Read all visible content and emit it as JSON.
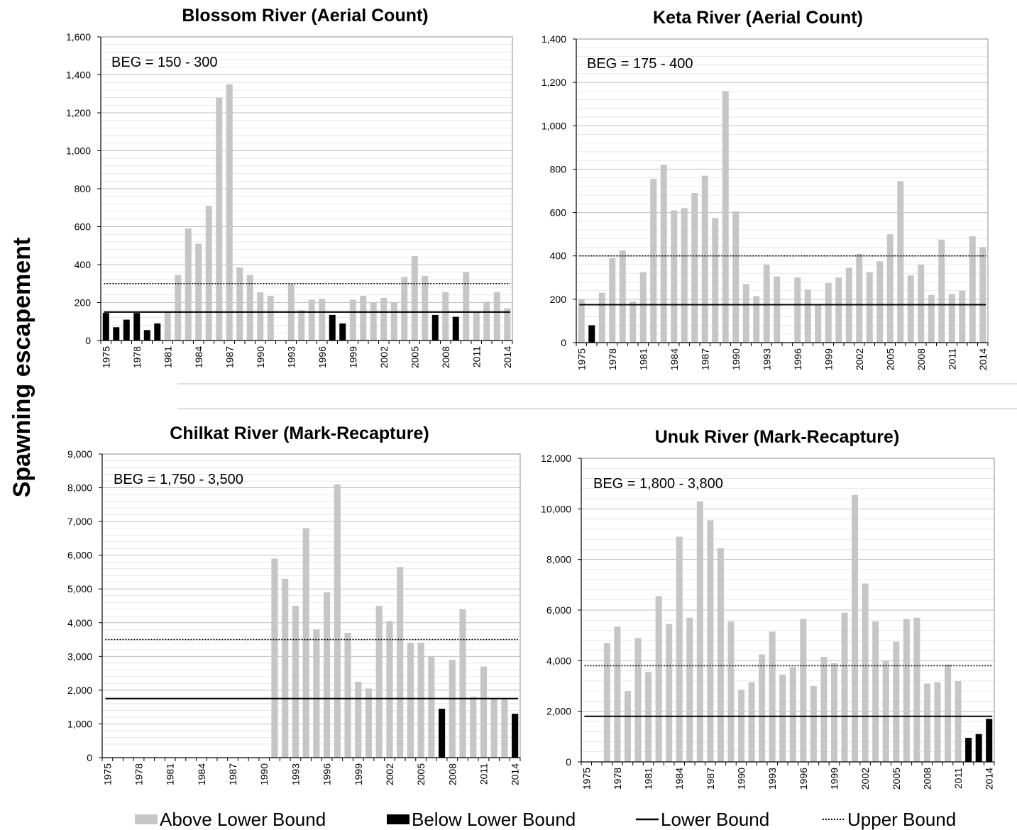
{
  "y_axis_label": "Spawning escapement",
  "legend": {
    "above": "Above Lower Bound",
    "below": "Below Lower Bound",
    "lower": "Lower Bound",
    "upper": "Upper Bound"
  },
  "colors": {
    "above": "#c6c6c6",
    "below": "#000000",
    "grid": "#bfbfbf"
  },
  "chart_data": [
    {
      "type": "bar",
      "title": "Blossom River (Aerial Count)",
      "annotation": "BEG = 150 - 300",
      "start_year": 1975,
      "x_tick_labels": [
        "1975",
        "1978",
        "1981",
        "1984",
        "1987",
        "1990",
        "1993",
        "1996",
        "1999",
        "2002",
        "2005",
        "2008",
        "2011",
        "2014"
      ],
      "y_tick_labels": [
        "0",
        "200",
        "400",
        "600",
        "800",
        "1,000",
        "1,200",
        "1,400",
        "1,600"
      ],
      "ylim": [
        0,
        1600
      ],
      "lower_bound": 150,
      "upper_bound": 300,
      "values": [
        145,
        70,
        110,
        145,
        55,
        90,
        150,
        345,
        590,
        510,
        710,
        1280,
        1350,
        385,
        345,
        255,
        235,
        0,
        300,
        160,
        215,
        220,
        135,
        90,
        215,
        235,
        200,
        225,
        200,
        335,
        445,
        340,
        135,
        255,
        125,
        360,
        150,
        205,
        255,
        170
      ]
    },
    {
      "type": "bar",
      "title": "Keta River (Aerial Count)",
      "annotation": "BEG = 175 - 400",
      "start_year": 1975,
      "x_tick_labels": [
        "1975",
        "1978",
        "1981",
        "1984",
        "1987",
        "1990",
        "1993",
        "1996",
        "1999",
        "2002",
        "2005",
        "2008",
        "2011",
        "2014"
      ],
      "y_tick_labels": [
        "0",
        "200",
        "400",
        "600",
        "800",
        "1,000",
        "1,200",
        "1,400"
      ],
      "ylim": [
        0,
        1400
      ],
      "lower_bound": 175,
      "upper_bound": 400,
      "values": [
        200,
        80,
        230,
        390,
        425,
        190,
        325,
        755,
        820,
        610,
        620,
        690,
        770,
        575,
        1160,
        605,
        270,
        215,
        360,
        305,
        0,
        300,
        245,
        175,
        275,
        300,
        345,
        410,
        325,
        375,
        500,
        745,
        310,
        360,
        220,
        475,
        225,
        240,
        490,
        440
      ]
    },
    {
      "type": "bar",
      "title": "Chilkat River (Mark-Recapture)",
      "annotation": "BEG = 1,750 - 3,500",
      "start_year": 1975,
      "x_tick_labels": [
        "1975",
        "1978",
        "1981",
        "1984",
        "1987",
        "1990",
        "1993",
        "1996",
        "1999",
        "2002",
        "2005",
        "2008",
        "2011",
        "2014"
      ],
      "y_tick_labels": [
        "0",
        "1,000",
        "2,000",
        "3,000",
        "4,000",
        "5,000",
        "6,000",
        "7,000",
        "8,000",
        "9,000"
      ],
      "ylim": [
        0,
        9000
      ],
      "lower_bound": 1750,
      "upper_bound": 3500,
      "values": [
        0,
        0,
        0,
        0,
        0,
        0,
        0,
        0,
        0,
        0,
        0,
        0,
        0,
        0,
        0,
        0,
        5900,
        5300,
        4500,
        6800,
        3800,
        4900,
        8100,
        3700,
        2250,
        2050,
        4500,
        4050,
        5650,
        3400,
        3400,
        3000,
        1450,
        2900,
        4400,
        1800,
        2700,
        1750,
        1750,
        1300
      ]
    },
    {
      "type": "bar",
      "title": "Unuk River (Mark-Recapture)",
      "annotation": "BEG = 1,800 - 3,800",
      "start_year": 1975,
      "x_tick_labels": [
        "1975",
        "1978",
        "1981",
        "1984",
        "1987",
        "1990",
        "1993",
        "1996",
        "1999",
        "2002",
        "2005",
        "2008",
        "2011",
        "2014"
      ],
      "y_tick_labels": [
        "0",
        "2,000",
        "4,000",
        "6,000",
        "8,000",
        "10,000",
        "12,000"
      ],
      "ylim": [
        0,
        12000
      ],
      "lower_bound": 1800,
      "upper_bound": 3800,
      "values": [
        0,
        0,
        4700,
        5350,
        2800,
        4900,
        3550,
        6550,
        5450,
        8900,
        5700,
        10300,
        9550,
        8450,
        5550,
        2850,
        3150,
        4250,
        5150,
        3450,
        3750,
        5650,
        3000,
        4150,
        3900,
        5900,
        10550,
        7050,
        5550,
        4000,
        4750,
        5650,
        5700,
        3100,
        3150,
        3850,
        3200,
        950,
        1100,
        1700
      ]
    }
  ]
}
